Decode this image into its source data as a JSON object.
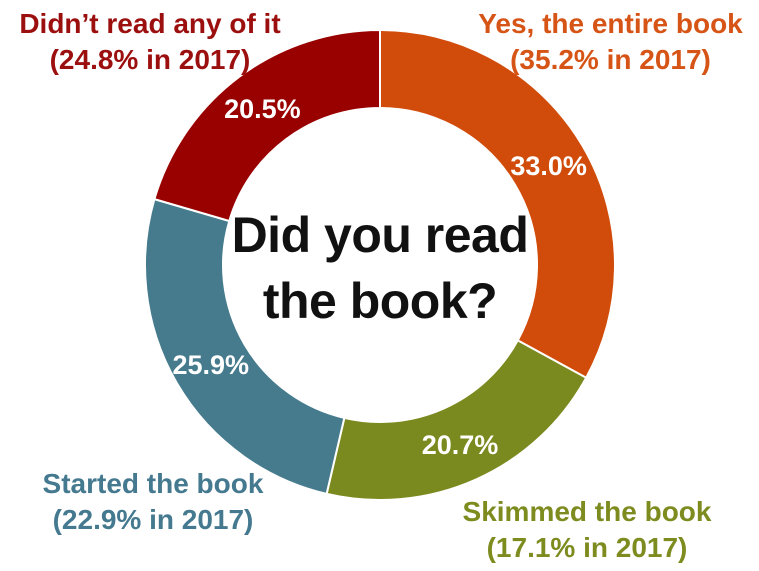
{
  "chart_data": {
    "type": "pie",
    "donut": true,
    "center_title": [
      "Did you read",
      "the book?"
    ],
    "slices": [
      {
        "category": "Yes, the entire book",
        "note": "(35.2% in 2017)",
        "value": 33.0,
        "value_label": "33.0%",
        "color": "#d14c0a"
      },
      {
        "category": "Skimmed the book",
        "note": "(17.1% in 2017)",
        "value": 20.7,
        "value_label": "20.7%",
        "color": "#7b8a1e"
      },
      {
        "category": "Started the book",
        "note": "(22.9% in 2017)",
        "value": 25.9,
        "value_label": "25.9%",
        "color": "#457b8d"
      },
      {
        "category": "Didn’t read any of it",
        "note": "(24.8% in 2017)",
        "value": 20.5,
        "value_label": "20.5%",
        "color": "#990000"
      }
    ],
    "label_colors": {
      "yes": "#d65416",
      "skimmed": "#7d8b1f",
      "started": "#44798f",
      "didnt": "#9c0f0f"
    },
    "value_label_color": "#ffffff",
    "legend": "none"
  }
}
